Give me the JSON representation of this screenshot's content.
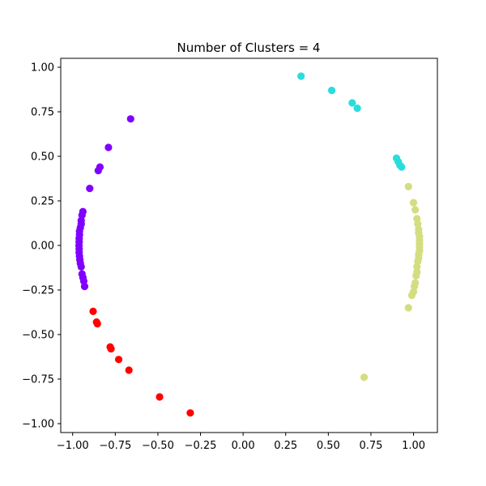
{
  "chart_data": {
    "type": "scatter",
    "title": "Number of Clusters = 4",
    "xlabel": "",
    "ylabel": "",
    "xlim": [
      -1.07,
      1.14
    ],
    "ylim": [
      -1.05,
      1.05
    ],
    "grid": false,
    "x_ticks": [
      {
        "value": -1.0,
        "label": "−1.00"
      },
      {
        "value": -0.75,
        "label": "−0.75"
      },
      {
        "value": -0.5,
        "label": "−0.50"
      },
      {
        "value": -0.25,
        "label": "−0.25"
      },
      {
        "value": 0.0,
        "label": "0.00"
      },
      {
        "value": 0.25,
        "label": "0.25"
      },
      {
        "value": 0.5,
        "label": "0.50"
      },
      {
        "value": 0.75,
        "label": "0.75"
      },
      {
        "value": 1.0,
        "label": "1.00"
      }
    ],
    "y_ticks": [
      {
        "value": 1.0,
        "label": "1.00"
      },
      {
        "value": 0.75,
        "label": "0.75"
      },
      {
        "value": 0.5,
        "label": "0.50"
      },
      {
        "value": 0.25,
        "label": "0.25"
      },
      {
        "value": 0.0,
        "label": "0.00"
      },
      {
        "value": -0.25,
        "label": "−0.25"
      },
      {
        "value": -0.5,
        "label": "−0.50"
      },
      {
        "value": -0.75,
        "label": "−0.75"
      },
      {
        "value": -1.0,
        "label": "−1.00"
      }
    ],
    "series": [
      {
        "color": "#8000ff",
        "points": [
          [
            -0.66,
            0.71
          ],
          [
            -0.79,
            0.55
          ],
          [
            -0.84,
            0.44
          ],
          [
            -0.85,
            0.42
          ],
          [
            -0.9,
            0.32
          ],
          [
            -0.94,
            0.19
          ],
          [
            -0.945,
            0.17
          ],
          [
            -0.95,
            0.14
          ],
          [
            -0.95,
            0.12
          ],
          [
            -0.955,
            0.1
          ],
          [
            -0.96,
            0.08
          ],
          [
            -0.96,
            0.06
          ],
          [
            -0.962,
            0.04
          ],
          [
            -0.962,
            0.02
          ],
          [
            -0.963,
            0.0
          ],
          [
            -0.962,
            -0.02
          ],
          [
            -0.962,
            -0.04
          ],
          [
            -0.96,
            -0.06
          ],
          [
            -0.958,
            -0.08
          ],
          [
            -0.955,
            -0.1
          ],
          [
            -0.95,
            -0.12
          ],
          [
            -0.945,
            -0.16
          ],
          [
            -0.94,
            -0.18
          ],
          [
            -0.935,
            -0.2
          ],
          [
            -0.93,
            -0.23
          ]
        ]
      },
      {
        "color": "#ff0000",
        "points": [
          [
            -0.88,
            -0.37
          ],
          [
            -0.86,
            -0.43
          ],
          [
            -0.855,
            -0.44
          ],
          [
            -0.78,
            -0.57
          ],
          [
            -0.775,
            -0.58
          ],
          [
            -0.73,
            -0.64
          ],
          [
            -0.67,
            -0.7
          ],
          [
            -0.49,
            -0.85
          ],
          [
            -0.31,
            -0.94
          ]
        ]
      },
      {
        "color": "#2adddd",
        "points": [
          [
            0.34,
            0.95
          ],
          [
            0.52,
            0.87
          ],
          [
            0.64,
            0.8
          ],
          [
            0.67,
            0.77
          ],
          [
            0.9,
            0.49
          ],
          [
            0.91,
            0.47
          ],
          [
            0.92,
            0.45
          ],
          [
            0.93,
            0.44
          ]
        ]
      },
      {
        "color": "#d4dd80",
        "points": [
          [
            0.97,
            0.33
          ],
          [
            1.0,
            0.24
          ],
          [
            1.01,
            0.2
          ],
          [
            1.02,
            0.15
          ],
          [
            1.025,
            0.12
          ],
          [
            1.03,
            0.09
          ],
          [
            1.03,
            0.07
          ],
          [
            1.035,
            0.05
          ],
          [
            1.035,
            0.03
          ],
          [
            1.035,
            0.01
          ],
          [
            1.035,
            -0.01
          ],
          [
            1.035,
            -0.03
          ],
          [
            1.03,
            -0.05
          ],
          [
            1.03,
            -0.07
          ],
          [
            1.025,
            -0.09
          ],
          [
            1.02,
            -0.12
          ],
          [
            1.02,
            -0.15
          ],
          [
            1.015,
            -0.17
          ],
          [
            1.01,
            -0.21
          ],
          [
            1.005,
            -0.23
          ],
          [
            1.0,
            -0.26
          ],
          [
            0.99,
            -0.28
          ],
          [
            0.97,
            -0.35
          ],
          [
            0.71,
            -0.74
          ]
        ]
      }
    ]
  }
}
